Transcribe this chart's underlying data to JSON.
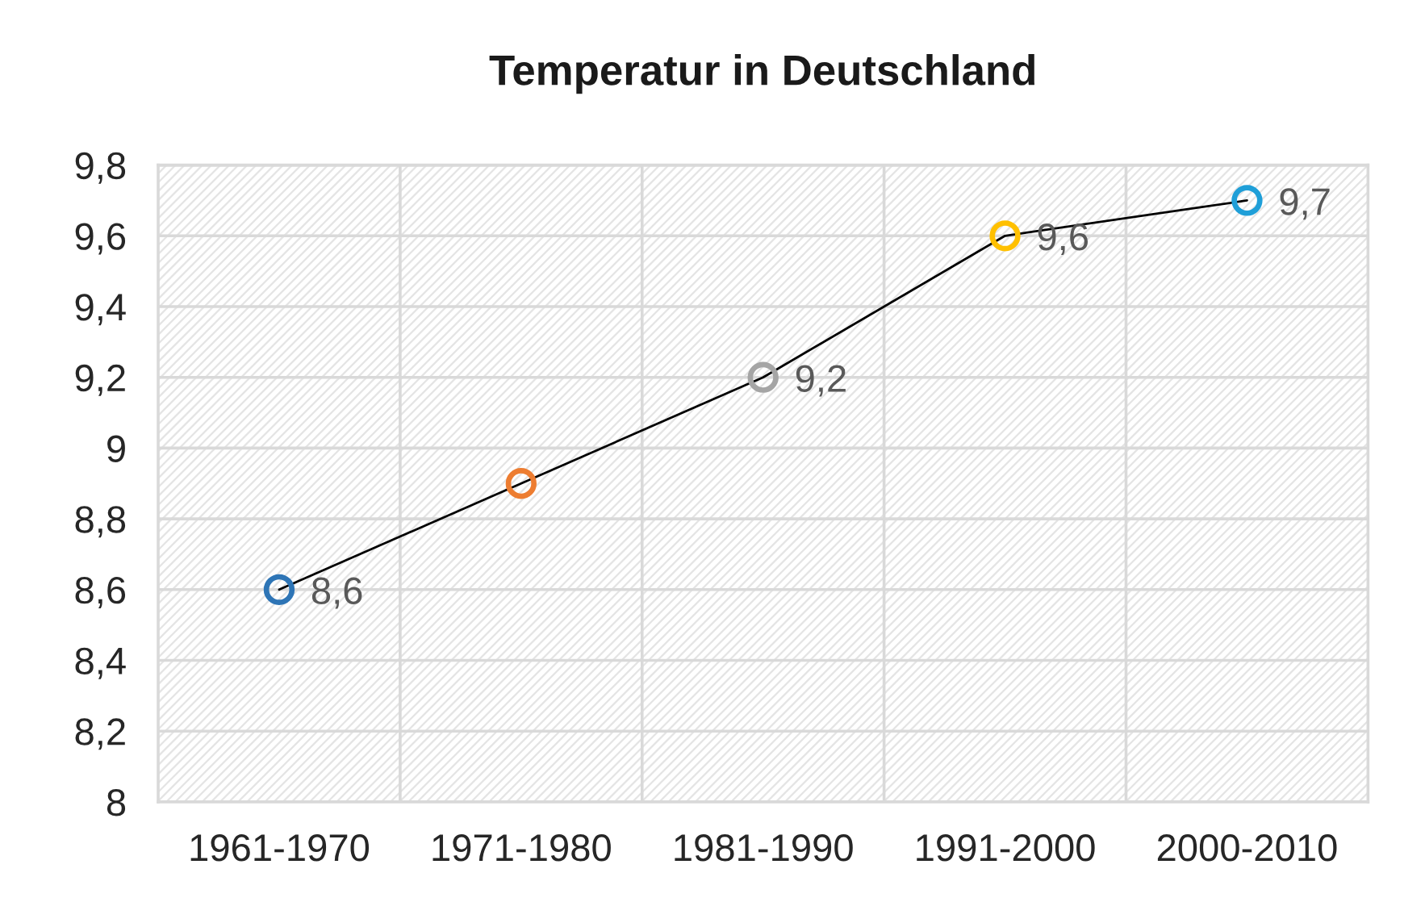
{
  "chart_data": {
    "type": "line",
    "title": "Temperatur in Deutschland",
    "categories": [
      "1961-1970",
      "1971-1980",
      "1981-1990",
      "1991-2000",
      "2000-2010"
    ],
    "series": [
      {
        "color": "#000000",
        "colors": [
          "#2e75b6",
          "#ed7d31",
          "#a5a5a5",
          "#ffc000",
          "#1f9fd8"
        ],
        "values": [
          8.6,
          8.9,
          9.2,
          9.6,
          9.7
        ],
        "value_labels": [
          "8,6",
          null,
          "9,2",
          "9,6",
          "9,7"
        ]
      }
    ],
    "ylim": [
      8,
      9.8
    ],
    "yticks": [
      8,
      {
        "value": 8.2,
        "label": "8,2"
      },
      {
        "value": 8.4,
        "label": "8,4"
      },
      {
        "value": 8.6,
        "label": "8,6"
      },
      {
        "value": 8.8,
        "label": "8,8"
      },
      9,
      {
        "value": 9.2,
        "label": "9,2"
      },
      {
        "value": 9.4,
        "label": "9,4"
      },
      {
        "value": 9.6,
        "label": "9,6"
      },
      {
        "value": 9.8,
        "label": "9,8"
      }
    ],
    "grid": true,
    "marker": "circle",
    "line_style": "solid"
  }
}
